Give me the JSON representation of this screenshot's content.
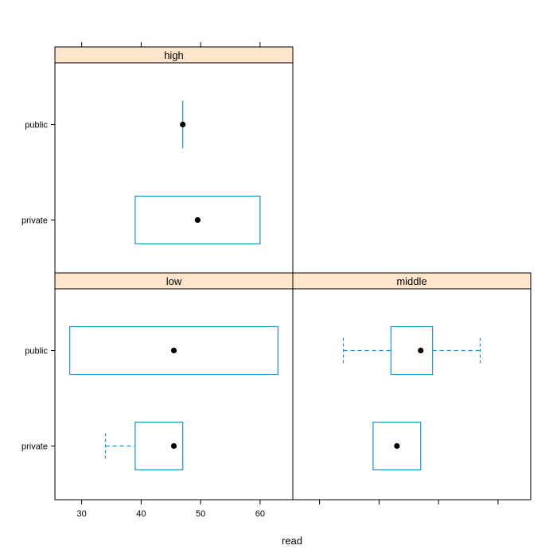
{
  "chart_data": {
    "type": "boxplot",
    "xlabel": "read",
    "xlim": [
      25.5,
      65.5
    ],
    "xticks": [
      30,
      40,
      50,
      60
    ],
    "categories": [
      "public",
      "private"
    ],
    "colors": {
      "box": "#1f8fd0",
      "strip": "#ffe5cc",
      "point": "#000000",
      "frame": "#000000"
    },
    "panels": [
      {
        "name": "high",
        "boxes": [
          {
            "category": "public",
            "whisker_low": 47,
            "q1": 47,
            "median": 47,
            "q3": 47,
            "whisker_high": 47
          },
          {
            "category": "private",
            "whisker_low": 39,
            "q1": 39,
            "median": 49.5,
            "q3": 60,
            "whisker_high": 60
          }
        ]
      },
      {
        "name": "low",
        "boxes": [
          {
            "category": "public",
            "whisker_low": 28,
            "q1": 28,
            "median": 45.5,
            "q3": 63,
            "whisker_high": 63
          },
          {
            "category": "private",
            "whisker_low": 34,
            "q1": 39,
            "median": 45.5,
            "q3": 47,
            "whisker_high": 47
          }
        ]
      },
      {
        "name": "middle",
        "boxes": [
          {
            "category": "public",
            "whisker_low": 34,
            "q1": 42,
            "median": 47,
            "q3": 49,
            "whisker_high": 57
          },
          {
            "category": "private",
            "whisker_low": 39,
            "q1": 39,
            "median": 43,
            "q3": 47,
            "whisker_high": 47
          }
        ]
      }
    ]
  }
}
